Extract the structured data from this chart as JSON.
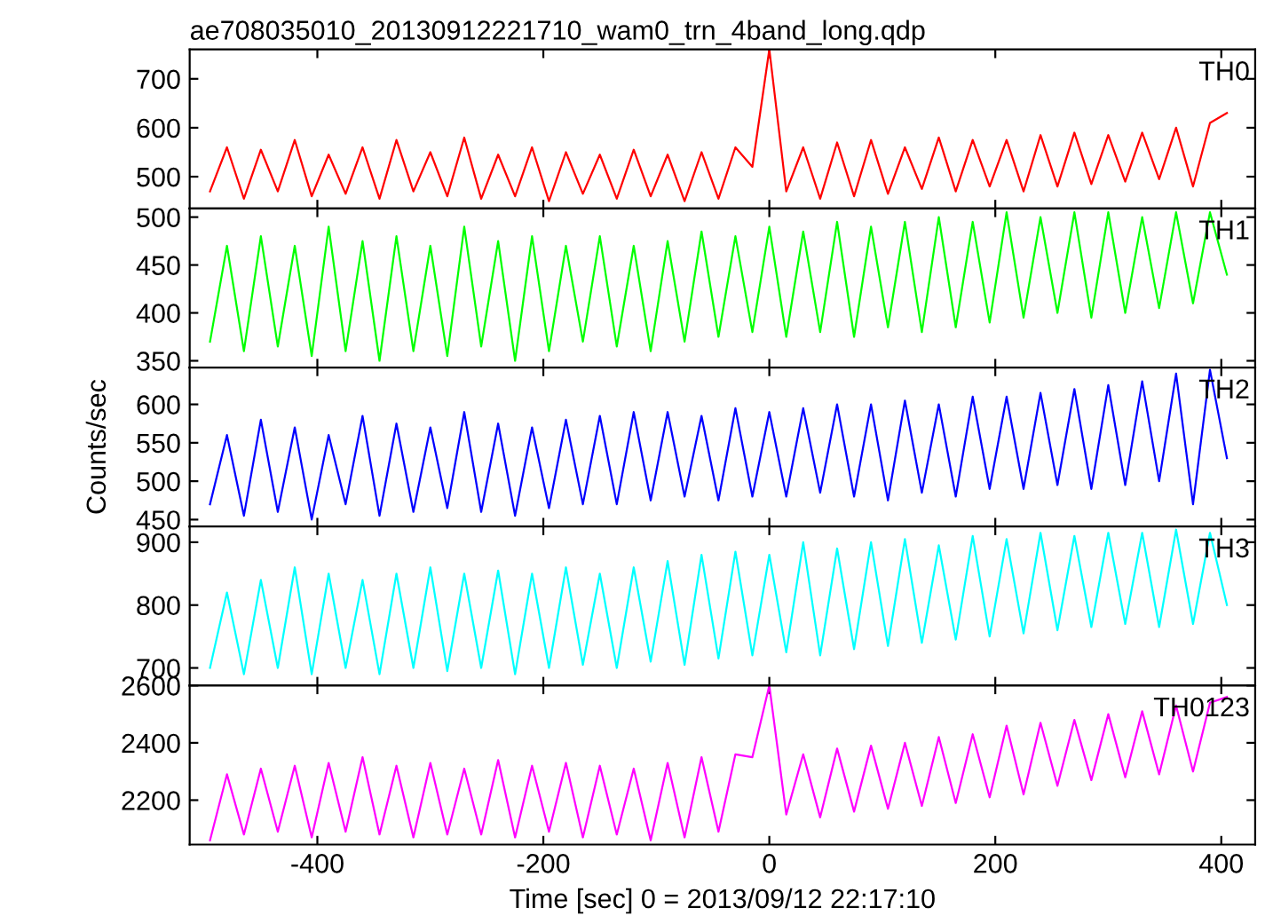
{
  "chart_data": [
    {
      "type": "line",
      "title": "ae708035010_20130912221710_wam0_trn_4band_long.qdp",
      "xlim": [
        -513,
        430
      ],
      "xticks": [
        -400,
        -200,
        0,
        200,
        400
      ],
      "ylim": [
        435,
        760
      ],
      "yticks": [
        500,
        600,
        700
      ],
      "tick_labels": "y",
      "x": [
        -495,
        -480,
        -465,
        -450,
        -435,
        -420,
        -405,
        -390,
        -375,
        -360,
        -345,
        -330,
        -315,
        -300,
        -285,
        -270,
        -255,
        -240,
        -225,
        -210,
        -195,
        -180,
        -165,
        -150,
        -135,
        -120,
        -105,
        -90,
        -75,
        -60,
        -45,
        -30,
        -15,
        0,
        15,
        30,
        45,
        60,
        75,
        90,
        105,
        120,
        135,
        150,
        165,
        180,
        195,
        210,
        225,
        240,
        255,
        270,
        285,
        300,
        315,
        330,
        345,
        360,
        375,
        390,
        405
      ],
      "series": [
        {
          "name": "TH0",
          "color": "#ff0000",
          "values": [
            470,
            560,
            455,
            555,
            470,
            575,
            460,
            545,
            465,
            560,
            455,
            575,
            470,
            550,
            460,
            580,
            455,
            545,
            460,
            560,
            450,
            550,
            465,
            545,
            455,
            555,
            460,
            545,
            450,
            550,
            455,
            560,
            520,
            760,
            470,
            560,
            455,
            570,
            460,
            575,
            465,
            560,
            475,
            580,
            470,
            575,
            480,
            575,
            470,
            585,
            480,
            590,
            485,
            585,
            490,
            590,
            495,
            600,
            480,
            610,
            630
          ]
        }
      ]
    },
    {
      "type": "line",
      "xlim": [
        -513,
        430
      ],
      "xticks": [
        -400,
        -200,
        0,
        200,
        400
      ],
      "ylim": [
        343,
        509
      ],
      "yticks": [
        350,
        400,
        450,
        500
      ],
      "tick_labels": "y",
      "x": [
        -495,
        -480,
        -465,
        -450,
        -435,
        -420,
        -405,
        -390,
        -375,
        -360,
        -345,
        -330,
        -315,
        -300,
        -285,
        -270,
        -255,
        -240,
        -225,
        -210,
        -195,
        -180,
        -165,
        -150,
        -135,
        -120,
        -105,
        -90,
        -75,
        -60,
        -45,
        -30,
        -15,
        0,
        15,
        30,
        45,
        60,
        75,
        90,
        105,
        120,
        135,
        150,
        165,
        180,
        195,
        210,
        225,
        240,
        255,
        270,
        285,
        300,
        315,
        330,
        345,
        360,
        375,
        390,
        405
      ],
      "series": [
        {
          "name": "TH1",
          "color": "#00ff00",
          "values": [
            370,
            470,
            360,
            480,
            365,
            470,
            355,
            490,
            360,
            475,
            350,
            480,
            360,
            470,
            355,
            490,
            365,
            475,
            350,
            480,
            360,
            470,
            370,
            480,
            365,
            470,
            360,
            475,
            370,
            485,
            375,
            480,
            380,
            490,
            375,
            485,
            380,
            495,
            375,
            490,
            385,
            495,
            380,
            500,
            385,
            495,
            390,
            505,
            395,
            500,
            400,
            505,
            395,
            505,
            400,
            500,
            405,
            505,
            410,
            505,
            440
          ]
        }
      ]
    },
    {
      "type": "line",
      "ylabel": "Counts/sec",
      "xlim": [
        -513,
        430
      ],
      "xticks": [
        -400,
        -200,
        0,
        200,
        400
      ],
      "ylim": [
        441,
        648
      ],
      "yticks": [
        450,
        500,
        550,
        600
      ],
      "tick_labels": "y",
      "x": [
        -495,
        -480,
        -465,
        -450,
        -435,
        -420,
        -405,
        -390,
        -375,
        -360,
        -345,
        -330,
        -315,
        -300,
        -285,
        -270,
        -255,
        -240,
        -225,
        -210,
        -195,
        -180,
        -165,
        -150,
        -135,
        -120,
        -105,
        -90,
        -75,
        -60,
        -45,
        -30,
        -15,
        0,
        15,
        30,
        45,
        60,
        75,
        90,
        105,
        120,
        135,
        150,
        165,
        180,
        195,
        210,
        225,
        240,
        255,
        270,
        285,
        300,
        315,
        330,
        345,
        360,
        375,
        390,
        405
      ],
      "series": [
        {
          "name": "TH2",
          "color": "#0000ff",
          "values": [
            470,
            560,
            455,
            580,
            460,
            570,
            450,
            560,
            470,
            585,
            455,
            575,
            460,
            570,
            465,
            590,
            460,
            575,
            455,
            570,
            465,
            580,
            470,
            585,
            470,
            590,
            475,
            590,
            480,
            585,
            475,
            595,
            480,
            590,
            480,
            595,
            485,
            600,
            480,
            600,
            475,
            605,
            485,
            600,
            480,
            610,
            490,
            610,
            490,
            615,
            495,
            620,
            490,
            625,
            495,
            630,
            500,
            640,
            470,
            645,
            530
          ]
        }
      ]
    },
    {
      "type": "line",
      "xlim": [
        -513,
        430
      ],
      "xticks": [
        -400,
        -200,
        0,
        200,
        400
      ],
      "ylim": [
        672,
        925
      ],
      "yticks": [
        700,
        800,
        900
      ],
      "tick_labels": "y",
      "x": [
        -495,
        -480,
        -465,
        -450,
        -435,
        -420,
        -405,
        -390,
        -375,
        -360,
        -345,
        -330,
        -315,
        -300,
        -285,
        -270,
        -255,
        -240,
        -225,
        -210,
        -195,
        -180,
        -165,
        -150,
        -135,
        -120,
        -105,
        -90,
        -75,
        -60,
        -45,
        -30,
        -15,
        0,
        15,
        30,
        45,
        60,
        75,
        90,
        105,
        120,
        135,
        150,
        165,
        180,
        195,
        210,
        225,
        240,
        255,
        270,
        285,
        300,
        315,
        330,
        345,
        360,
        375,
        390,
        405
      ],
      "series": [
        {
          "name": "TH3",
          "color": "#00ffff",
          "values": [
            700,
            820,
            690,
            840,
            700,
            860,
            690,
            850,
            700,
            840,
            690,
            850,
            700,
            860,
            695,
            850,
            700,
            855,
            690,
            850,
            700,
            860,
            705,
            850,
            700,
            860,
            710,
            870,
            705,
            880,
            715,
            885,
            720,
            880,
            725,
            900,
            720,
            890,
            730,
            900,
            735,
            905,
            740,
            895,
            745,
            910,
            750,
            905,
            755,
            915,
            760,
            910,
            765,
            915,
            770,
            915,
            765,
            920,
            770,
            915,
            800
          ]
        }
      ]
    },
    {
      "type": "line",
      "xlabel": "Time [sec] 0 = 2013/09/12 22:17:10",
      "xlim": [
        -513,
        430
      ],
      "xticks": [
        -400,
        -200,
        0,
        200,
        400
      ],
      "ylim": [
        2045,
        2600
      ],
      "yticks": [
        2200,
        2400,
        2600
      ],
      "x": [
        -495,
        -480,
        -465,
        -450,
        -435,
        -420,
        -405,
        -390,
        -375,
        -360,
        -345,
        -330,
        -315,
        -300,
        -285,
        -270,
        -255,
        -240,
        -225,
        -210,
        -195,
        -180,
        -165,
        -150,
        -135,
        -120,
        -105,
        -90,
        -75,
        -60,
        -45,
        -30,
        -15,
        0,
        15,
        30,
        45,
        60,
        75,
        90,
        105,
        120,
        135,
        150,
        165,
        180,
        195,
        210,
        225,
        240,
        255,
        270,
        285,
        300,
        315,
        330,
        345,
        360,
        375,
        390,
        405
      ],
      "series": [
        {
          "name": "TH0123",
          "color": "#ff00ff",
          "values": [
            2060,
            2290,
            2080,
            2310,
            2090,
            2320,
            2070,
            2330,
            2090,
            2350,
            2080,
            2320,
            2070,
            2330,
            2080,
            2310,
            2080,
            2340,
            2070,
            2320,
            2090,
            2330,
            2070,
            2320,
            2080,
            2310,
            2060,
            2330,
            2070,
            2350,
            2090,
            2360,
            2350,
            2600,
            2150,
            2360,
            2140,
            2380,
            2160,
            2390,
            2170,
            2400,
            2180,
            2420,
            2190,
            2430,
            2210,
            2460,
            2220,
            2470,
            2250,
            2480,
            2270,
            2500,
            2280,
            2510,
            2290,
            2530,
            2300,
            2540,
            2560
          ]
        }
      ]
    }
  ]
}
